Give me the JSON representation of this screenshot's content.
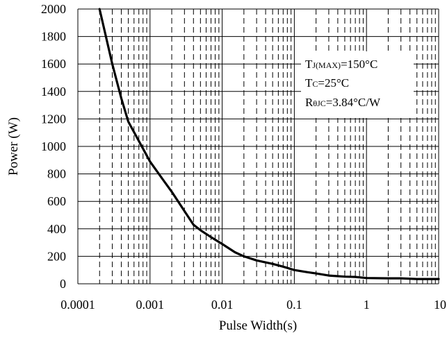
{
  "chart_data": {
    "type": "line",
    "xlabel": "Pulse Width(s)",
    "ylabel": "Power (W)",
    "x_scale": "log",
    "xlim": [
      0.0001,
      10
    ],
    "ylim": [
      0,
      2000
    ],
    "x_ticks": [
      "0.0001",
      "0.001",
      "0.01",
      "0.1",
      "1",
      "10"
    ],
    "y_ticks": [
      "0",
      "200",
      "400",
      "600",
      "800",
      "1000",
      "1200",
      "1400",
      "1600",
      "1800",
      "2000"
    ],
    "grid": true,
    "annotations": [
      {
        "main": "T",
        "sub": "J(MAX)",
        "rest": "=150°C"
      },
      {
        "main": "T",
        "sub": "C",
        "rest": "=25°C"
      },
      {
        "main": "R",
        "sub": "θJC",
        "rest": "=3.84°C/W"
      }
    ],
    "series": [
      {
        "x": [
          0.0002,
          0.0003,
          0.0004,
          0.0005,
          0.0007,
          0.001,
          0.0015,
          0.002,
          0.003,
          0.004,
          0.005,
          0.007,
          0.01,
          0.015,
          0.02,
          0.03,
          0.05,
          0.07,
          0.1,
          0.15,
          0.2,
          0.3,
          0.5,
          0.7,
          1,
          2,
          3,
          5,
          10
        ],
        "y": [
          2000,
          1600,
          1350,
          1180,
          1040,
          890,
          760,
          670,
          530,
          430,
          390,
          340,
          290,
          230,
          200,
          170,
          145,
          125,
          100,
          85,
          75,
          60,
          52,
          50,
          42,
          40,
          40,
          35,
          35
        ]
      }
    ]
  }
}
